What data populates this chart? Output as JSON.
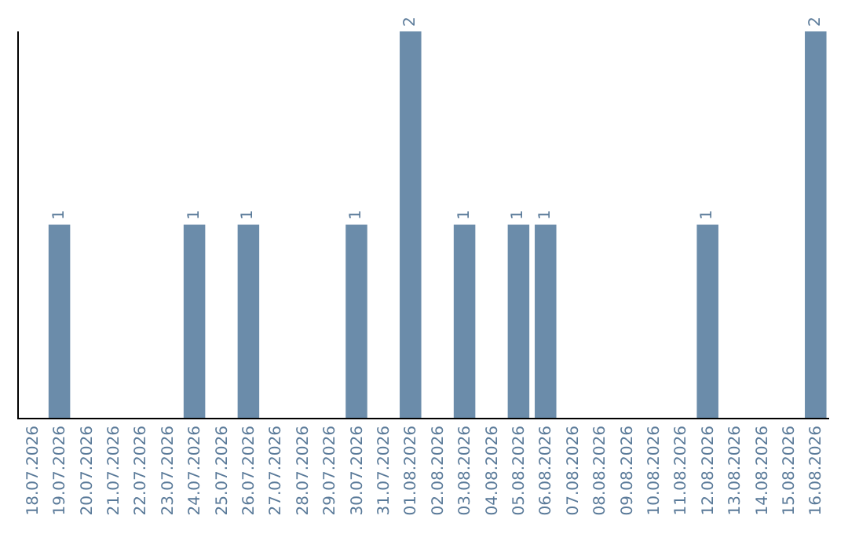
{
  "chart_data": {
    "type": "bar",
    "categories": [
      "18.07.2026",
      "19.07.2026",
      "20.07.2026",
      "21.07.2026",
      "22.07.2026",
      "23.07.2026",
      "24.07.2026",
      "25.07.2026",
      "26.07.2026",
      "27.07.2026",
      "28.07.2026",
      "29.07.2026",
      "30.07.2026",
      "31.07.2026",
      "01.08.2026",
      "02.08.2026",
      "03.08.2026",
      "04.08.2026",
      "05.08.2026",
      "06.08.2026",
      "07.08.2026",
      "08.08.2026",
      "09.08.2026",
      "10.08.2026",
      "11.08.2026",
      "12.08.2026",
      "13.08.2026",
      "14.08.2026",
      "15.08.2026",
      "16.08.2026"
    ],
    "values": [
      0,
      1,
      0,
      0,
      0,
      0,
      1,
      0,
      1,
      0,
      0,
      0,
      1,
      0,
      2,
      0,
      1,
      0,
      1,
      1,
      0,
      0,
      0,
      0,
      0,
      1,
      0,
      0,
      0,
      2
    ],
    "value_labels": [
      null,
      "1",
      null,
      null,
      null,
      null,
      "1",
      null,
      "1",
      null,
      null,
      null,
      "1",
      null,
      "2",
      null,
      "1",
      null,
      "1",
      "1",
      null,
      null,
      null,
      null,
      null,
      "1",
      null,
      null,
      null,
      "2"
    ],
    "color": "#6b8caa",
    "ylim": [
      0,
      2
    ],
    "tick_labels": "x"
  }
}
